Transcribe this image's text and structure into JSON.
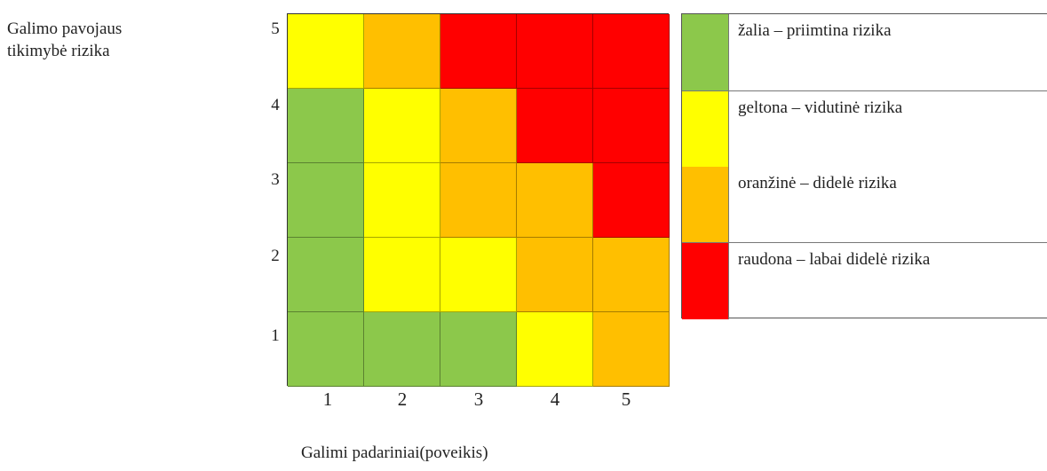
{
  "y_axis": {
    "title_line1": "Galimo pavojaus",
    "title_line2": "tikimybė rizika",
    "ticks": [
      "5",
      "4",
      "3",
      "2",
      "1"
    ]
  },
  "x_axis": {
    "title": "Galimi padariniai(poveikis)",
    "ticks": [
      "1",
      "2",
      "3",
      "4",
      "5"
    ]
  },
  "colors": {
    "green": "#8cc84b",
    "yellow": "#ffff00",
    "orange": "#ffbf00",
    "red": "#ff0000"
  },
  "matrix": [
    [
      "yellow",
      "orange",
      "red",
      "red",
      "red"
    ],
    [
      "green",
      "yellow",
      "orange",
      "red",
      "red"
    ],
    [
      "green",
      "yellow",
      "orange",
      "orange",
      "red"
    ],
    [
      "green",
      "yellow",
      "yellow",
      "orange",
      "orange"
    ],
    [
      "green",
      "green",
      "green",
      "yellow",
      "orange"
    ]
  ],
  "legend": [
    {
      "color": "green",
      "label": "žalia – priimtina rizika"
    },
    {
      "color": "yellow",
      "label": "geltona – vidutinė rizika"
    },
    {
      "color": "orange",
      "label": "oranžinė – didelė rizika"
    },
    {
      "color": "red",
      "label": "raudona – labai didelė rizika"
    }
  ]
}
